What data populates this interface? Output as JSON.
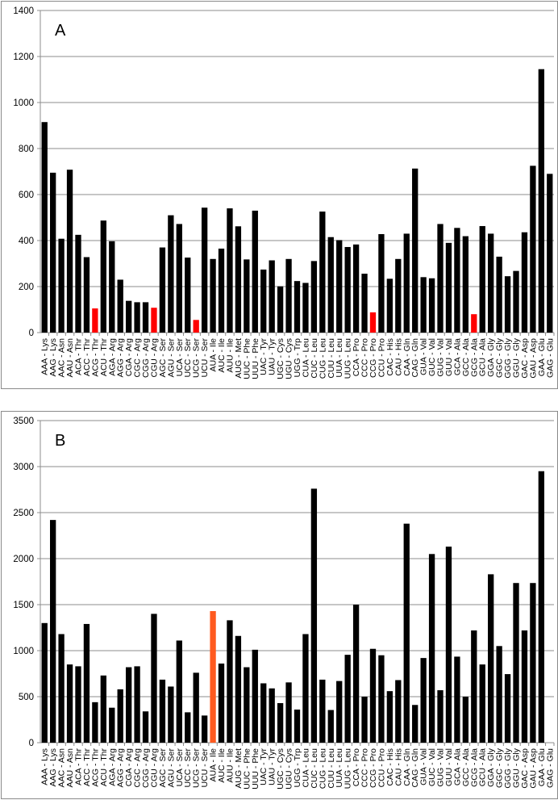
{
  "charts": [
    {
      "panel_label": "A",
      "chart_data": {
        "type": "bar",
        "ylim": [
          0,
          1400
        ],
        "yticks": [
          0,
          200,
          400,
          600,
          800,
          1000,
          1200,
          1400
        ],
        "grid": true,
        "colors": {
          "default": "#000000",
          "highlight": "#ff0000"
        },
        "categories": [
          "AAA - Lys",
          "AAG - Lys",
          "AAC - Asn",
          "AAU - Asn",
          "ACA - Thr",
          "ACC - Thr",
          "ACG - Thr",
          "ACU - Thr",
          "AGA - Arg",
          "AGG - Arg",
          "CGA - Arg",
          "CGC - Arg",
          "CGG - Arg",
          "CGU - Arg",
          "AGC - Ser",
          "AGU - Ser",
          "UCA - Ser",
          "UCC - Ser",
          "UCG - Ser",
          "UCU - Ser",
          "AUA - Ile",
          "AUC - Ile",
          "AUU - Ile",
          "AUG - Met",
          "UUC - Phe",
          "UUU - Phe",
          "UAC - Tyr",
          "UAU - Tyr",
          "UGC - Cys",
          "UGU - Cys",
          "UGG - Trp",
          "CUA - Leu",
          "CUC - Leu",
          "CUG - Leu",
          "CUU - Leu",
          "UUA - Leu",
          "UUG - Leu",
          "CCA - Pro",
          "CCC - Pro",
          "CCG - Pro",
          "CCU - Pro",
          "CAC - His",
          "CAU - His",
          "CAA - Gln",
          "CAG - Gln",
          "GUA - Val",
          "GUC - Val",
          "GUG - Val",
          "GUU - Val",
          "GCA - Ala",
          "GCC - Ala",
          "GCG - Ala",
          "GCU - Ala",
          "GGA - Gly",
          "GGC - Gly",
          "GGG - Gly",
          "GGU - Gly",
          "GAC - Asp",
          "GAU - Asp",
          "GAA - Glu",
          "GAG - Glu"
        ],
        "values": [
          915,
          695,
          408,
          708,
          425,
          328,
          105,
          487,
          397,
          230,
          138,
          132,
          132,
          108,
          370,
          510,
          472,
          326,
          55,
          543,
          320,
          365,
          540,
          462,
          318,
          530,
          274,
          314,
          201,
          320,
          224,
          216,
          311,
          526,
          415,
          402,
          372,
          383,
          256,
          88,
          428,
          234,
          320,
          430,
          713,
          241,
          236,
          472,
          390,
          455,
          419,
          80,
          463,
          430,
          330,
          245,
          268,
          436,
          725,
          1145,
          690
        ],
        "highlight_categories": [
          "ACG - Thr",
          "CGU - Arg",
          "UCG - Ser",
          "CCG - Pro",
          "GCG - Ala"
        ]
      }
    },
    {
      "panel_label": "B",
      "chart_data": {
        "type": "bar",
        "ylim": [
          0,
          3500
        ],
        "yticks": [
          0,
          500,
          1000,
          1500,
          2000,
          2500,
          3000,
          3500
        ],
        "grid": true,
        "colors": {
          "default": "#000000",
          "highlight": "#ff5a1f"
        },
        "categories": [
          "AAA - Lys",
          "AAG - Lys",
          "AAC - Asn",
          "AAU - Asn",
          "ACA - Thr",
          "ACC - Thr",
          "ACG - Thr",
          "ACU - Thr",
          "AGA - Arg",
          "AGG - Arg",
          "CGA - Arg",
          "CGC - Arg",
          "CGG - Arg",
          "CGU - Arg",
          "AGC - Ser",
          "AGU - Ser",
          "UCA - Ser",
          "UCC - Ser",
          "UCG - Ser",
          "UCU - Ser",
          "AUA - Ile",
          "AUC - Ile",
          "AUU - Ile",
          "AUG - Met",
          "UUC - Phe",
          "UUU - Phe",
          "UAC - Tyr",
          "UAU - Tyr",
          "UGC - Cys",
          "UGU - Cys",
          "UGG - Trp",
          "CUA - Leu",
          "CUC - Leu",
          "CUG - Leu",
          "CUU - Leu",
          "UUA - Leu",
          "UUG - Leu",
          "CCA - Pro",
          "CCC - Pro",
          "CCG - Pro",
          "CCU - Pro",
          "CAC - His",
          "CAU - His",
          "CAA - Gln",
          "CAG - Gln",
          "GUA - Val",
          "GUC - Val",
          "GUG - Val",
          "GUU - Val",
          "GCA - Ala",
          "GCC - Ala",
          "GCG - Ala",
          "GCU - Ala",
          "GGA - Gly",
          "GGC - Gly",
          "GGG - Gly",
          "GGU - Gly",
          "GAC - Asp",
          "GAU - Asp",
          "GAA - Glu",
          "GAG - Glu"
        ],
        "values": [
          1300,
          2420,
          1180,
          850,
          830,
          1290,
          440,
          730,
          380,
          580,
          820,
          830,
          340,
          1400,
          685,
          610,
          1110,
          330,
          760,
          295,
          1430,
          860,
          1330,
          1160,
          820,
          1010,
          645,
          590,
          430,
          655,
          360,
          1180,
          2760,
          685,
          355,
          670,
          955,
          1500,
          500,
          1020,
          950,
          560,
          680,
          2380,
          410,
          920,
          2050,
          570,
          2130,
          935,
          500,
          1220,
          850,
          1830,
          1050,
          745,
          1735,
          1220,
          1735,
          2950,
          0
        ],
        "highlight_categories": [
          "AUA - Ile"
        ]
      }
    }
  ]
}
